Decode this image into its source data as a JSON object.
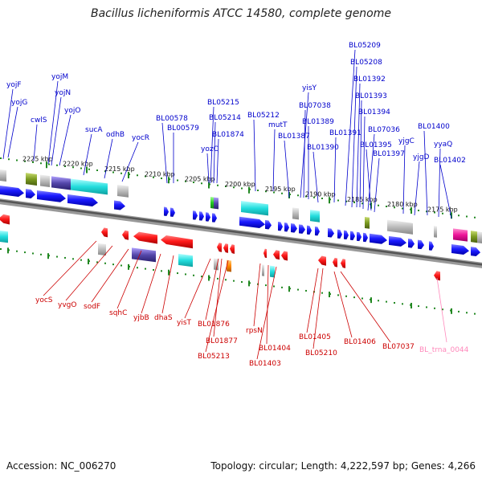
{
  "title": "Bacillus licheniformis ATCC 14580, complete genome",
  "footer": {
    "accession": "Accession: NC_006270",
    "topology": "Topology: circular; Length: 4,222,597 bp; Genes: 4,266"
  },
  "colors": {
    "forward_gene": "#1a1aff",
    "reverse_gene": "#ff1a1a",
    "forward_label": "#0000cc",
    "reverse_label": "#cc0000",
    "trna_label": "#ff88bb",
    "tick_green": "#228822",
    "backbone": "#777777"
  },
  "scale_ticks": [
    "2225 kbp",
    "2220 kbp",
    "2215 kbp",
    "2210 kbp",
    "2205 kbp",
    "2200 kbp",
    "2195 kbp",
    "2190 kbp",
    "2185 kbp",
    "2180 kbp",
    "2175 kbp"
  ],
  "forward_labels": [
    "yojF",
    "yojG",
    "cwlS",
    "yojM",
    "yojN",
    "yojO",
    "sucA",
    "odhB",
    "yocR",
    "BL00578",
    "BL00579",
    "yozC",
    "BL05215",
    "BL05214",
    "BL01874",
    "BL05212",
    "mutT",
    "BL01387",
    "yisY",
    "BL07038",
    "BL01389",
    "BL01390",
    "BL01391",
    "BL05209",
    "BL05208",
    "BL01392",
    "BL01393",
    "BL01394",
    "BL07036",
    "BL01395",
    "BL01397",
    "yjgC",
    "yjgD",
    "BL01400",
    "yyaQ",
    "BL01402"
  ],
  "reverse_labels": [
    "yocS",
    "yvgO",
    "sodF",
    "sqhC",
    "yjbB",
    "dhaS",
    "yisT",
    "BL01876",
    "BL01877",
    "BL05213",
    "rpsN",
    "BL01404",
    "BL01403",
    "BL01405",
    "BL05210",
    "BL01406",
    "BL07037"
  ],
  "trna_labels": [
    "BL_trna_0044"
  ]
}
